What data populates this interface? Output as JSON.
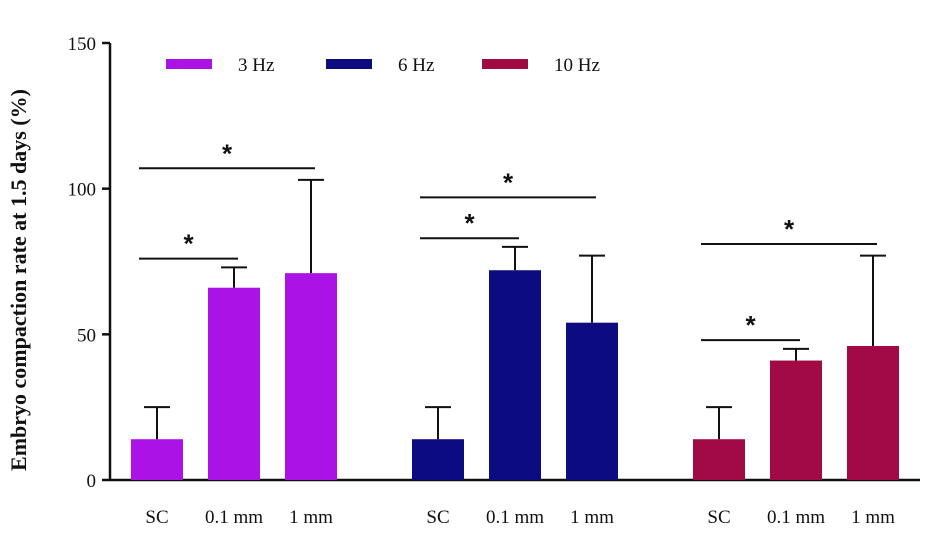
{
  "chart_data": {
    "type": "bar",
    "title": "",
    "xlabel": "",
    "ylabel": "Embryo compaction rate at 1.5 days  (%)",
    "ylim": [
      0,
      150
    ],
    "yticks": [
      0,
      50,
      100,
      150
    ],
    "categories": [
      "SC",
      "0.1 mm",
      "1 mm"
    ],
    "grid": false,
    "legend_position": "top-left",
    "series": [
      {
        "name": "3 Hz",
        "color": "#aa12e6",
        "values": [
          14,
          66,
          71
        ],
        "errors_upper": [
          25,
          73,
          103
        ]
      },
      {
        "name": "6 Hz",
        "color": "#0c0c80",
        "values": [
          14,
          72,
          54
        ],
        "errors_upper": [
          25,
          80,
          77
        ]
      },
      {
        "name": "10 Hz",
        "color": "#a10a45",
        "values": [
          14,
          41,
          46
        ],
        "errors_upper": [
          25,
          45,
          77
        ]
      }
    ],
    "annotations": [
      {
        "group": 0,
        "from": 0,
        "to": 1,
        "level": 76,
        "text": "*"
      },
      {
        "group": 0,
        "from": 0,
        "to": 2,
        "level": 107,
        "text": "*"
      },
      {
        "group": 1,
        "from": 0,
        "to": 1,
        "level": 83,
        "text": "*"
      },
      {
        "group": 1,
        "from": 0,
        "to": 2,
        "level": 97,
        "text": "*"
      },
      {
        "group": 2,
        "from": 0,
        "to": 1,
        "level": 48,
        "text": "*"
      },
      {
        "group": 2,
        "from": 0,
        "to": 2,
        "level": 81,
        "text": "*"
      }
    ]
  }
}
